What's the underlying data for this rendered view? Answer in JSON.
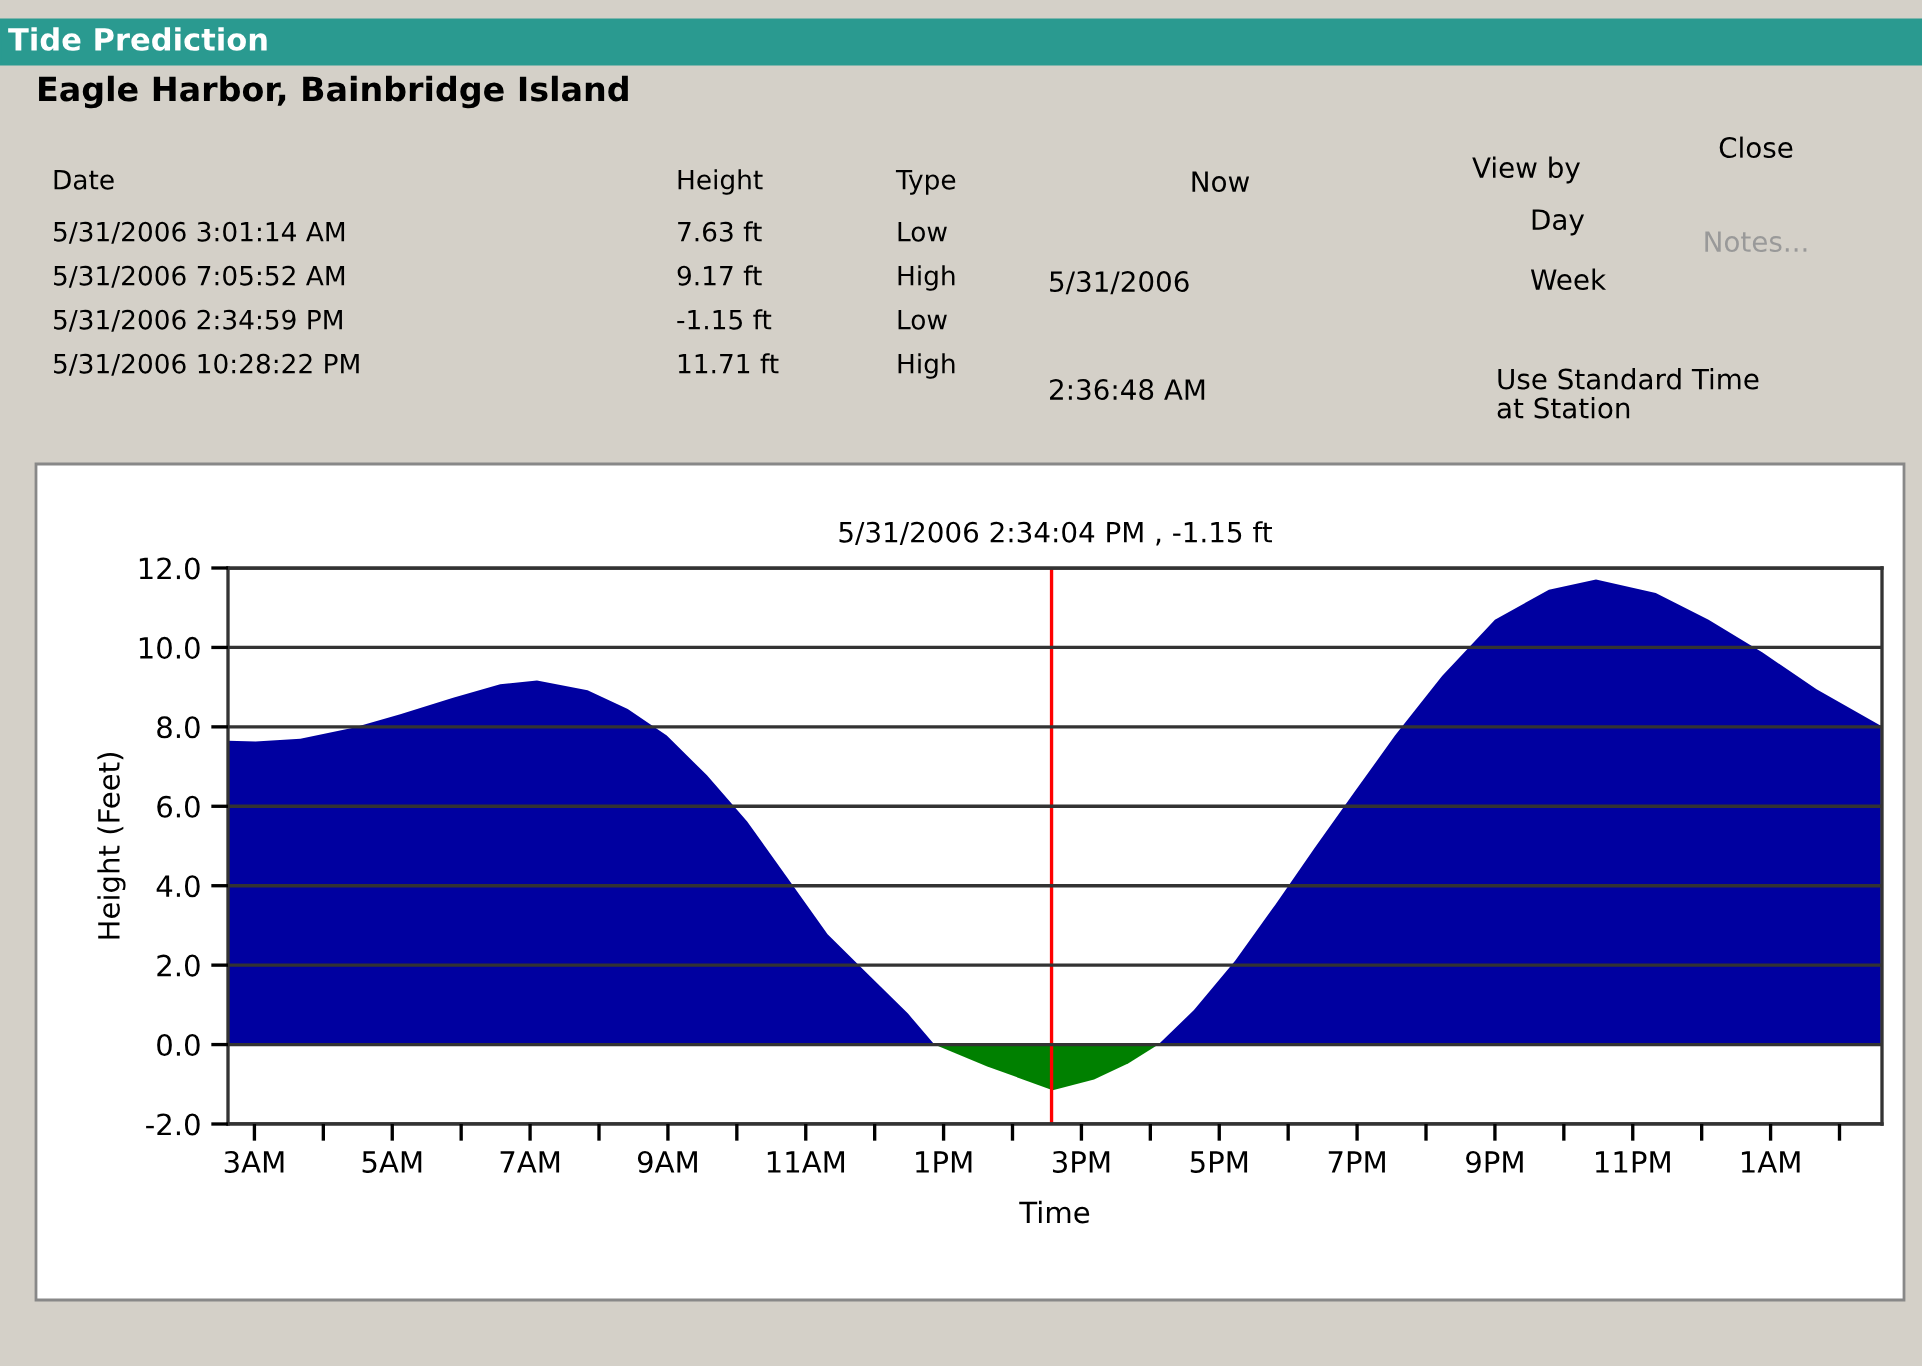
{
  "chart_data": {
    "type": "area",
    "title": "Tide Prediction",
    "subtitle": "Eagle Harbor, Bainbridge Island",
    "xlabel": "Time",
    "ylabel": "Height (Feet)",
    "annotations": [
      "Date",
      "Height",
      "Type",
      "5/31/2006 3:01:14 AM",
      "7.63 ft",
      "Low",
      "5/31/2006 7:05:52 AM",
      "9.17 ft",
      "High",
      "5/31/2006 2:34:59 PM",
      "-1.15 ft",
      "Low",
      "5/31/2006 10:28:22 PM",
      "11.71 ft",
      "High",
      "Now",
      "5/31/2006",
      "2:36:48 AM",
      "View by",
      "Day",
      "Week",
      "Use Standard Time\nat Station",
      "Close",
      "Notes..."
    ],
    "series": [
      {
        "color": "#0000a0",
        "x": [
          "2006-05-31T02:37",
          "2006-05-31T03:01",
          "2006-05-31T03:40",
          "2006-05-31T04:26",
          "2006-05-31T05:07",
          "2006-05-31T05:53",
          "2006-05-31T06:34",
          "2006-05-31T07:06",
          "2006-05-31T07:50",
          "2006-05-31T08:25",
          "2006-05-31T08:59",
          "2006-05-31T09:34",
          "2006-05-31T10:09",
          "2006-05-31T10:44",
          "2006-05-31T11:19",
          "2006-05-31T11:54",
          "2006-05-31T12:29",
          "2006-05-31T12:52",
          "2006-05-31T16:07",
          "2006-05-31T16:38",
          "2006-05-31T17:14",
          "2006-05-31T17:49",
          "2006-05-31T18:23",
          "2006-05-31T18:58",
          "2006-05-31T19:33",
          "2006-05-31T20:14",
          "2006-05-31T21:00",
          "2006-05-31T21:47",
          "2006-05-31T22:28",
          "2006-05-31T23:20",
          "2006-06-01T00:06",
          "2006-06-01T00:53",
          "2006-06-01T01:40",
          "2006-06-01T02:36"
        ],
        "values": [
          7.65,
          7.63,
          7.7,
          7.98,
          8.32,
          8.73,
          9.07,
          9.17,
          8.92,
          8.45,
          7.78,
          6.78,
          5.62,
          4.2,
          2.78,
          1.78,
          0.78,
          0,
          0,
          0.87,
          2.12,
          3.53,
          4.95,
          6.37,
          7.78,
          9.28,
          10.7,
          11.45,
          11.71,
          11.37,
          10.7,
          9.87,
          8.95,
          8.03
        ]
      },
      {
        "color": "#008000",
        "x": [
          "2006-05-31T12:52",
          "2006-05-31T13:38",
          "2006-05-31T14:35",
          "2006-05-31T15:11",
          "2006-05-31T15:41",
          "2006-05-31T16:07"
        ],
        "values": [
          0,
          -0.55,
          -1.15,
          -0.88,
          -0.47,
          0
        ]
      }
    ],
    "xlim": [
      "2006-05-31T02:37",
      "2006-06-01T02:37"
    ],
    "xticks": [
      {
        "value": "2006-05-31T03:00",
        "label": "3AM"
      },
      {
        "value": "2006-05-31T04:00",
        "label": null
      },
      {
        "value": "2006-05-31T05:00",
        "label": "5AM"
      },
      {
        "value": "2006-05-31T06:00",
        "label": null
      },
      {
        "value": "2006-05-31T07:00",
        "label": "7AM"
      },
      {
        "value": "2006-05-31T08:00",
        "label": null
      },
      {
        "value": "2006-05-31T09:00",
        "label": "9AM"
      },
      {
        "value": "2006-05-31T10:00",
        "label": null
      },
      {
        "value": "2006-05-31T11:00",
        "label": "11AM"
      },
      {
        "value": "2006-05-31T12:00",
        "label": null
      },
      {
        "value": "2006-05-31T13:00",
        "label": "1PM"
      },
      {
        "value": "2006-05-31T14:00",
        "label": null
      },
      {
        "value": "2006-05-31T15:00",
        "label": "3PM"
      },
      {
        "value": "2006-05-31T16:00",
        "label": null
      },
      {
        "value": "2006-05-31T17:00",
        "label": "5PM"
      },
      {
        "value": "2006-05-31T18:00",
        "label": null
      },
      {
        "value": "2006-05-31T19:00",
        "label": "7PM"
      },
      {
        "value": "2006-05-31T20:00",
        "label": null
      },
      {
        "value": "2006-05-31T21:00",
        "label": "9PM"
      },
      {
        "value": "2006-05-31T22:00",
        "label": null
      },
      {
        "value": "2006-05-31T23:00",
        "label": "11PM"
      },
      {
        "value": "2006-06-01T00:00",
        "label": null
      },
      {
        "value": "2006-06-01T01:00",
        "label": "1AM"
      },
      {
        "value": "2006-06-01T02:00",
        "label": null
      }
    ],
    "ylim": [
      -2,
      12
    ],
    "yticks": [
      {
        "value": -2,
        "label": "-2.0"
      },
      {
        "value": 0,
        "label": "0.0"
      },
      {
        "value": 2,
        "label": "2.0"
      },
      {
        "value": 4,
        "label": "4.0"
      },
      {
        "value": 6,
        "label": "6.0"
      },
      {
        "value": 8,
        "label": "8.0"
      },
      {
        "value": 10,
        "label": "10.0"
      },
      {
        "value": 12,
        "label": "12.0"
      }
    ],
    "ref_lines": [
      {
        "axis": "x",
        "value": "2006-05-31T14:34",
        "label": "5/31/2006 2:34:04 PM , -1.15 ft",
        "color": "#ff0000"
      }
    ],
    "grid": "y",
    "legend": false
  }
}
